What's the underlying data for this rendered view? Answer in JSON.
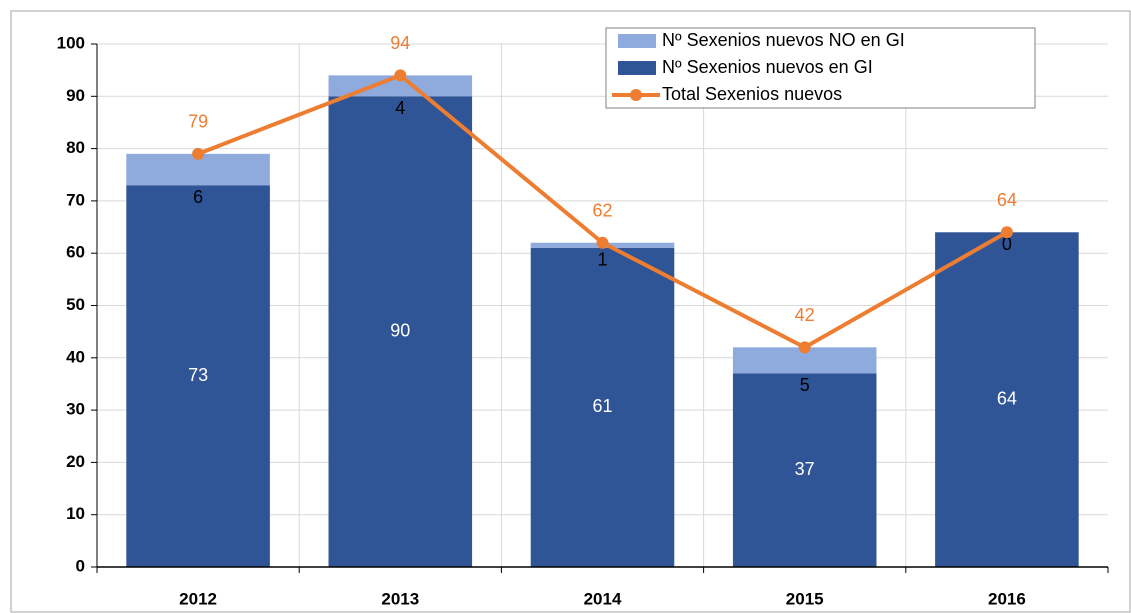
{
  "chart_data": {
    "type": "bar",
    "stacked": true,
    "categories": [
      "2012",
      "2013",
      "2014",
      "2015",
      "2016"
    ],
    "series": [
      {
        "name": "Nº Sexenios nuevos NO en GI",
        "type": "bar",
        "color": "#8faadc",
        "label_color": "#000000",
        "values": [
          6,
          4,
          1,
          5,
          0
        ]
      },
      {
        "name": "Nº Sexenios nuevos en GI",
        "type": "bar",
        "color": "#2f5597",
        "label_color": "#ffffff",
        "values": [
          73,
          90,
          61,
          37,
          64
        ]
      },
      {
        "name": "Total Sexenios nuevos",
        "type": "line",
        "color": "#ed7d31",
        "label_color": "#ed7d31",
        "values": [
          79,
          94,
          62,
          42,
          64
        ]
      }
    ],
    "ylim": [
      0,
      100
    ],
    "yticks": [
      0,
      10,
      20,
      30,
      40,
      50,
      60,
      70,
      80,
      90,
      100
    ],
    "grid": true,
    "legend": "top-right"
  }
}
